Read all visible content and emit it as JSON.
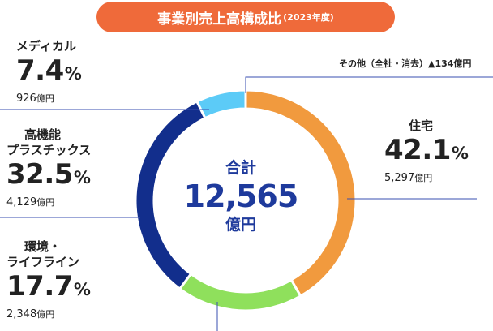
{
  "title": {
    "main": "事業別売上高構成比",
    "sub": "(2023年度)"
  },
  "center": {
    "label": "合計",
    "total": "12,565",
    "unit": "億円"
  },
  "labels": {
    "medical": {
      "name": "メディカル",
      "pct": "7.4",
      "pct_unit": "%",
      "amount": "926",
      "amount_unit": "億円"
    },
    "plastics": {
      "name1": "高機能",
      "name2": "プラスチックス",
      "pct": "32.5",
      "pct_unit": "%",
      "amount": "4,129",
      "amount_unit": "億円"
    },
    "infra": {
      "name1": "環境・",
      "name2": "ライフライン",
      "pct": "17.7",
      "pct_unit": "%",
      "amount": "2,348",
      "amount_unit": "億円"
    },
    "housing": {
      "name": "住宅",
      "pct": "42.1",
      "pct_unit": "%",
      "amount": "5,297",
      "amount_unit": "億円"
    },
    "other": {
      "text": "その他（全社・消去）▲134億円"
    }
  },
  "chart_data": {
    "type": "pie",
    "title": "事業別売上高構成比(2023年度)",
    "total": 12565,
    "unit": "億円",
    "series": [
      {
        "name": "住宅",
        "value": 5297,
        "percent": 42.1,
        "color": "#f19a3e"
      },
      {
        "name": "環境・ライフライン",
        "value": 2348,
        "percent": 17.7,
        "color": "#8fe05c"
      },
      {
        "name": "高機能プラスチックス",
        "value": 4129,
        "percent": 32.5,
        "color": "#122e8c"
      },
      {
        "name": "メディカル",
        "value": 926,
        "percent": 7.4,
        "color": "#5ccbf7"
      }
    ],
    "adjustment": {
      "name": "その他（全社・消去）",
      "value": -134
    }
  }
}
